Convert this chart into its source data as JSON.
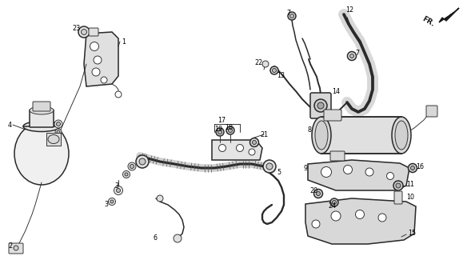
{
  "bg_color": "#ffffff",
  "line_color": "#2a2a2a",
  "label_color": "#000000",
  "lw_main": 1.1,
  "lw_thin": 0.65,
  "lw_hose": 2.2,
  "font_size": 5.8
}
